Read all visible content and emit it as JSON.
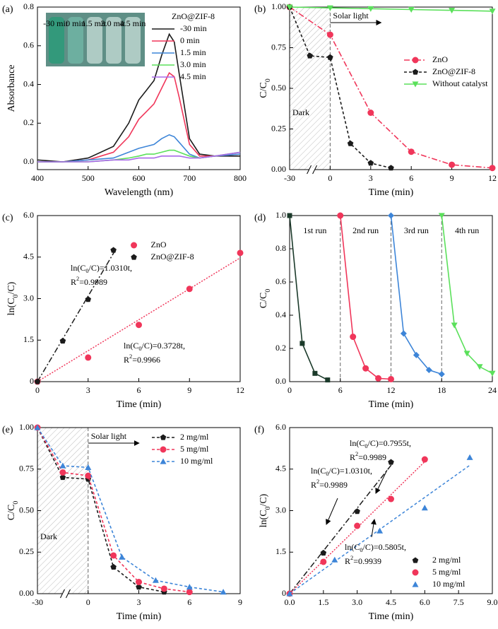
{
  "chart_data": [
    {
      "type": "line",
      "label": "(a)",
      "xlabel": "Wavelength (nm)",
      "ylabel": "Absorbance",
      "xlim": [
        400,
        800
      ],
      "ylim": [
        -0.04,
        0.8
      ],
      "xticks": [
        400,
        500,
        600,
        700,
        800
      ],
      "yticks": [
        {
          "value": 0,
          "label": "0.0"
        },
        0.2,
        0.4,
        0.6,
        0.8
      ],
      "x": [
        400,
        450,
        500,
        550,
        580,
        600,
        615,
        630,
        645,
        660,
        670,
        680,
        700,
        720,
        750,
        800
      ],
      "series": [
        {
          "name": "-30 min",
          "color": "#1b1b1b",
          "dash": "solid",
          "values": [
            0.01,
            0.0,
            0.02,
            0.08,
            0.2,
            0.32,
            0.37,
            0.42,
            0.55,
            0.66,
            0.62,
            0.45,
            0.12,
            0.04,
            0.03,
            0.03
          ]
        },
        {
          "name": "0 min",
          "color": "#f0365a",
          "dash": "solid",
          "values": [
            0.0,
            0.0,
            0.01,
            0.05,
            0.13,
            0.22,
            0.26,
            0.3,
            0.38,
            0.46,
            0.44,
            0.33,
            0.09,
            0.03,
            0.03,
            0.04
          ]
        },
        {
          "name": "1.5 min",
          "color": "#3d85d8",
          "dash": "solid",
          "values": [
            0.0,
            0.0,
            0.01,
            0.02,
            0.05,
            0.07,
            0.08,
            0.09,
            0.12,
            0.14,
            0.13,
            0.1,
            0.04,
            0.02,
            0.03,
            0.04
          ]
        },
        {
          "name": "3.0 min",
          "color": "#5be05b",
          "dash": "solid",
          "values": [
            0.0,
            0.0,
            0.0,
            0.01,
            0.02,
            0.03,
            0.04,
            0.04,
            0.05,
            0.06,
            0.06,
            0.05,
            0.03,
            0.02,
            0.03,
            0.05
          ]
        },
        {
          "name": "4.5 min",
          "color": "#a868e8",
          "dash": "solid",
          "values": [
            0.0,
            0.0,
            0.0,
            0.01,
            0.01,
            0.02,
            0.02,
            0.02,
            0.03,
            0.03,
            0.03,
            0.03,
            0.02,
            0.02,
            0.03,
            0.05
          ]
        }
      ],
      "legend": {
        "corner": "upper right",
        "title": "ZnO@ZIF-8"
      },
      "inset_labels": [
        "-30 min",
        "0 min",
        "1.5 min",
        "3.0 min",
        "4.5 min"
      ]
    },
    {
      "type": "line",
      "label": "(b)",
      "xlabel": "Time (min)",
      "ylabel": [
        "C/C",
        "0"
      ],
      "xlim": [
        -30,
        12
      ],
      "ylim": [
        0,
        1
      ],
      "xticks": [
        -30,
        0,
        3,
        6,
        9,
        12
      ],
      "broken_x": true,
      "yticks": [
        {
          "value": 0,
          "label": "0.00"
        },
        0.25,
        {
          "value": 0.5,
          "label": "0.50"
        },
        0.75,
        {
          "value": 1,
          "label": "1.00"
        }
      ],
      "shade": {
        "x": [
          -30,
          0
        ],
        "label": "Dark"
      },
      "arrow_label": "Solar light",
      "series": [
        {
          "name": "ZnO",
          "color": "#f0365a",
          "dash": "dashdot",
          "marker": "circle",
          "x": [
            -30,
            0,
            3,
            6,
            9,
            12
          ],
          "values": [
            1.0,
            0.83,
            0.35,
            0.11,
            0.03,
            0.01
          ]
        },
        {
          "name": "ZnO@ZIF-8",
          "color": "#1b1b1b",
          "dash": "dashed",
          "marker": "pentagon",
          "x": [
            -30,
            -15,
            0,
            1.5,
            3,
            4.5
          ],
          "values": [
            1.0,
            0.7,
            0.69,
            0.16,
            0.04,
            0.01
          ]
        },
        {
          "name": "Without catalyst",
          "color": "#5be05b",
          "dash": "solid",
          "marker": "triangle-down",
          "x": [
            -30,
            0,
            3,
            6,
            9,
            12
          ],
          "values": [
            1.0,
            0.995,
            0.99,
            0.985,
            0.98,
            0.975
          ]
        }
      ],
      "legend": {
        "corner": "center right"
      }
    },
    {
      "type": "scatter",
      "label": "(c)",
      "xlabel": "Time (min)",
      "ylabel": [
        "ln(C",
        "0",
        "/C)"
      ],
      "xlim": [
        0,
        12
      ],
      "ylim": [
        0,
        6
      ],
      "xticks": [
        0,
        3,
        6,
        9,
        12
      ],
      "yticks": [
        0,
        1.5,
        {
          "value": 3,
          "label": "3.0"
        },
        4.5,
        {
          "value": 6,
          "label": "6.0"
        }
      ],
      "series": [
        {
          "name": "ZnO",
          "color": "#f0365a",
          "dash": "dotted",
          "marker": "circle",
          "x": [
            0,
            3,
            6,
            9,
            12
          ],
          "values": [
            0,
            0.87,
            2.05,
            3.35,
            4.65
          ],
          "fit": {
            "x": [
              0,
              12
            ],
            "values": [
              0,
              4.47
            ]
          },
          "fit_label": [
            "ln(C",
            "0",
            "/C)=0.3728t,"
          ],
          "r2_label": [
            "R",
            "2",
            "=0.9966"
          ]
        },
        {
          "name": "ZnO@ZIF-8",
          "color": "#1b1b1b",
          "dash": "dashdot",
          "marker": "pentagon",
          "x": [
            0,
            1.5,
            3,
            4.5
          ],
          "values": [
            0,
            1.47,
            2.97,
            4.75
          ],
          "fit": {
            "x": [
              0,
              4.6
            ],
            "values": [
              0,
              4.74
            ]
          },
          "fit_label": [
            "ln(C",
            "0",
            "/C)=1.0310t,"
          ],
          "r2_label": [
            "R",
            "2",
            "=0.9989"
          ]
        }
      ],
      "legend": {
        "corner": "upper center"
      }
    },
    {
      "type": "line",
      "label": "(d)",
      "xlabel": "Time (min)",
      "ylabel": [
        "C/C",
        "0"
      ],
      "xlim": [
        0,
        24
      ],
      "ylim": [
        0,
        1
      ],
      "xticks": [
        0,
        6,
        12,
        18,
        24
      ],
      "yticks": [
        {
          "value": 0,
          "label": "0.0"
        },
        0.2,
        0.4,
        0.6,
        0.8,
        {
          "value": 1,
          "label": "1.0"
        }
      ],
      "vlines": [
        6,
        12,
        18
      ],
      "series": [
        {
          "name": "1st run",
          "color": "#1b3a2a",
          "dash": "solid",
          "marker": "square",
          "x": [
            0,
            1.5,
            3,
            4.5
          ],
          "values": [
            1.0,
            0.23,
            0.05,
            0.01
          ]
        },
        {
          "name": "2nd run",
          "color": "#f0365a",
          "dash": "solid",
          "marker": "circle",
          "x": [
            6,
            7.5,
            9,
            10.5,
            12
          ],
          "values": [
            1.0,
            0.27,
            0.08,
            0.02,
            0.015
          ]
        },
        {
          "name": "3rd run",
          "color": "#3d85d8",
          "dash": "solid",
          "marker": "diamond",
          "x": [
            12,
            13.5,
            15,
            16.5,
            18
          ],
          "values": [
            1.0,
            0.29,
            0.16,
            0.07,
            0.045
          ]
        },
        {
          "name": "4th run",
          "color": "#5be05b",
          "dash": "solid",
          "marker": "triangle-down",
          "x": [
            18,
            19.5,
            21,
            22.5,
            24
          ],
          "values": [
            1.0,
            0.34,
            0.17,
            0.09,
            0.05
          ]
        }
      ]
    },
    {
      "type": "line",
      "label": "(e)",
      "xlabel": "Time (min)",
      "ylabel": [
        "C/C",
        "0"
      ],
      "xlim": [
        -30,
        9
      ],
      "ylim": [
        0,
        1
      ],
      "xticks": [
        -30,
        0,
        3,
        6,
        9
      ],
      "broken_x": true,
      "yticks": [
        {
          "value": 0,
          "label": "0.00"
        },
        0.25,
        {
          "value": 0.5,
          "label": "0.50"
        },
        0.75,
        {
          "value": 1,
          "label": "1.00"
        }
      ],
      "shade": {
        "x": [
          -30,
          0
        ],
        "label": "Dark"
      },
      "arrow_label": "Solar light",
      "series": [
        {
          "name": "2 mg/ml",
          "color": "#1b1b1b",
          "dash": "dashed",
          "marker": "pentagon",
          "x": [
            -30,
            -15,
            0,
            1.5,
            3,
            4.5
          ],
          "values": [
            1.0,
            0.7,
            0.69,
            0.16,
            0.04,
            0.01
          ]
        },
        {
          "name": "5 mg/ml",
          "color": "#f0365a",
          "dash": "dashed",
          "marker": "circle",
          "x": [
            -30,
            -15,
            0,
            1.5,
            3,
            4.5,
            6
          ],
          "values": [
            1.0,
            0.73,
            0.71,
            0.23,
            0.07,
            0.03,
            0.01
          ]
        },
        {
          "name": "10 mg/ml",
          "color": "#3d85d8",
          "dash": "dashed",
          "marker": "triangle-up",
          "x": [
            -30,
            -15,
            0,
            2,
            4,
            6,
            8
          ],
          "values": [
            1.0,
            0.77,
            0.76,
            0.22,
            0.08,
            0.04,
            0.01
          ]
        }
      ],
      "legend": {
        "corner": "upper right"
      }
    },
    {
      "type": "scatter",
      "label": "(f)",
      "xlabel": "Time (min)",
      "ylabel": [
        "ln(C",
        "0",
        "/C)"
      ],
      "xlim": [
        0,
        9
      ],
      "ylim": [
        0,
        6
      ],
      "xticks": [
        {
          "value": 0,
          "label": "0.0"
        },
        1.5,
        {
          "value": 3,
          "label": "3.0"
        },
        4.5,
        {
          "value": 6,
          "label": "6.0"
        },
        7.5,
        {
          "value": 9,
          "label": "9.0"
        }
      ],
      "yticks": [
        0,
        1.5,
        {
          "value": 3,
          "label": "3.0"
        },
        4.5,
        {
          "value": 6,
          "label": "6.0"
        }
      ],
      "series": [
        {
          "name": "2 mg/ml",
          "color": "#1b1b1b",
          "dash": "dashdot",
          "marker": "pentagon",
          "x": [
            0,
            1.5,
            3,
            4.5
          ],
          "values": [
            0,
            1.47,
            2.97,
            4.75
          ],
          "fit": {
            "x": [
              0,
              4.6
            ],
            "values": [
              0,
              4.74
            ]
          },
          "fit_label": [
            "ln(C",
            "0",
            "/C)=1.0310t,"
          ],
          "r2_label": [
            "R",
            "2",
            "=0.9989"
          ]
        },
        {
          "name": "5 mg/ml",
          "color": "#f0365a",
          "dash": "dotted",
          "marker": "circle",
          "x": [
            0,
            1.5,
            3,
            4.5,
            6
          ],
          "values": [
            0,
            1.15,
            2.45,
            3.42,
            4.85
          ],
          "fit": {
            "x": [
              0,
              6
            ],
            "values": [
              0,
              4.77
            ]
          },
          "fit_label": [
            "ln(C",
            "0",
            "/C)=0.7955t,"
          ],
          "r2_label": [
            "R",
            "2",
            "=0.9989"
          ]
        },
        {
          "name": "10 mg/ml",
          "color": "#3d85d8",
          "dash": "dashed",
          "marker": "triangle-up",
          "x": [
            0,
            2,
            4,
            6,
            8
          ],
          "values": [
            0,
            1.22,
            2.27,
            3.1,
            4.92
          ],
          "fit": {
            "x": [
              0,
              8
            ],
            "values": [
              0,
              4.64
            ]
          },
          "fit_label": [
            "ln(C",
            "0",
            "/C)=0.5805t,"
          ],
          "r2_label": [
            "R",
            "2",
            "=0.9939"
          ]
        }
      ],
      "legend": {
        "corner": "lower right"
      }
    }
  ]
}
